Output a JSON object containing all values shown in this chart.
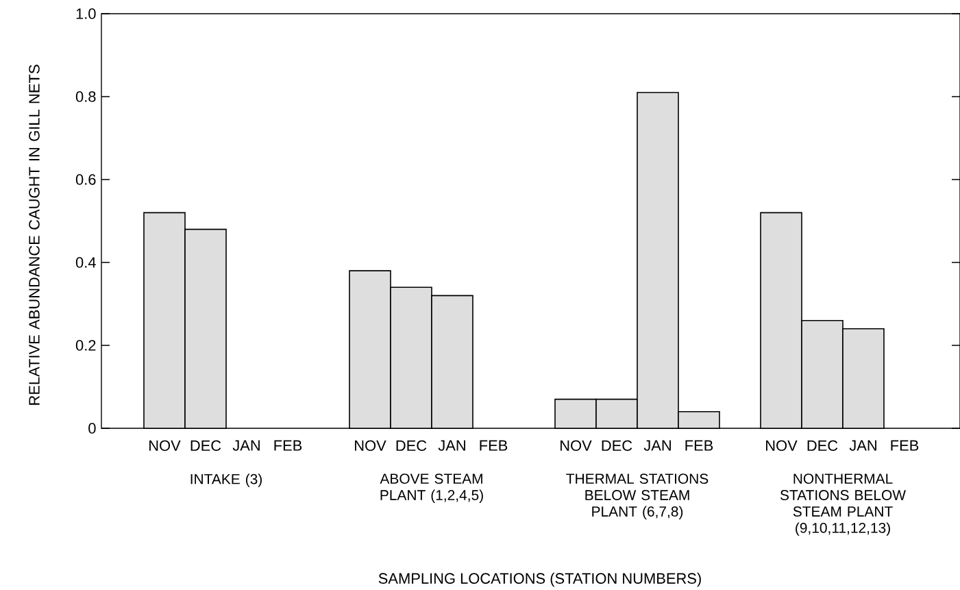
{
  "chart_data": {
    "type": "bar",
    "ylabel": "RELATIVE ABUNDANCE CAUGHT IN GILL NETS",
    "categories": [
      "NOV",
      "DEC",
      "JAN",
      "FEB",
      "NOV",
      "DEC",
      "JAN",
      "FEB",
      "NOV",
      "DEC",
      "JAN",
      "FEB",
      "NOV",
      "DEC",
      "JAN",
      "FEB"
    ],
    "values": [
      0.52,
      0.48,
      null,
      null,
      0.38,
      0.34,
      0.32,
      null,
      0.07,
      0.07,
      0.81,
      0.04,
      0.52,
      0.26,
      0.24,
      null
    ],
    "color": "#dedede",
    "annotations": [
      "INTAKE (3)",
      "ABOVE STEAM PLANT (1,2,4,5)",
      "THERMAL STATIONS BELOW STEAM PLANT (6,7,8)",
      "NONTHERMAL STATIONS BELOW STEAM PLANT (9,10,11,12,13)",
      "SAMPLING LOCATIONS (STATION NUMBERS)"
    ],
    "ylim": [
      0,
      1
    ],
    "yticks": [
      0,
      0.2,
      0.4,
      0.6,
      0.8,
      {
        "value": 1,
        "label": "1.0"
      }
    ]
  }
}
